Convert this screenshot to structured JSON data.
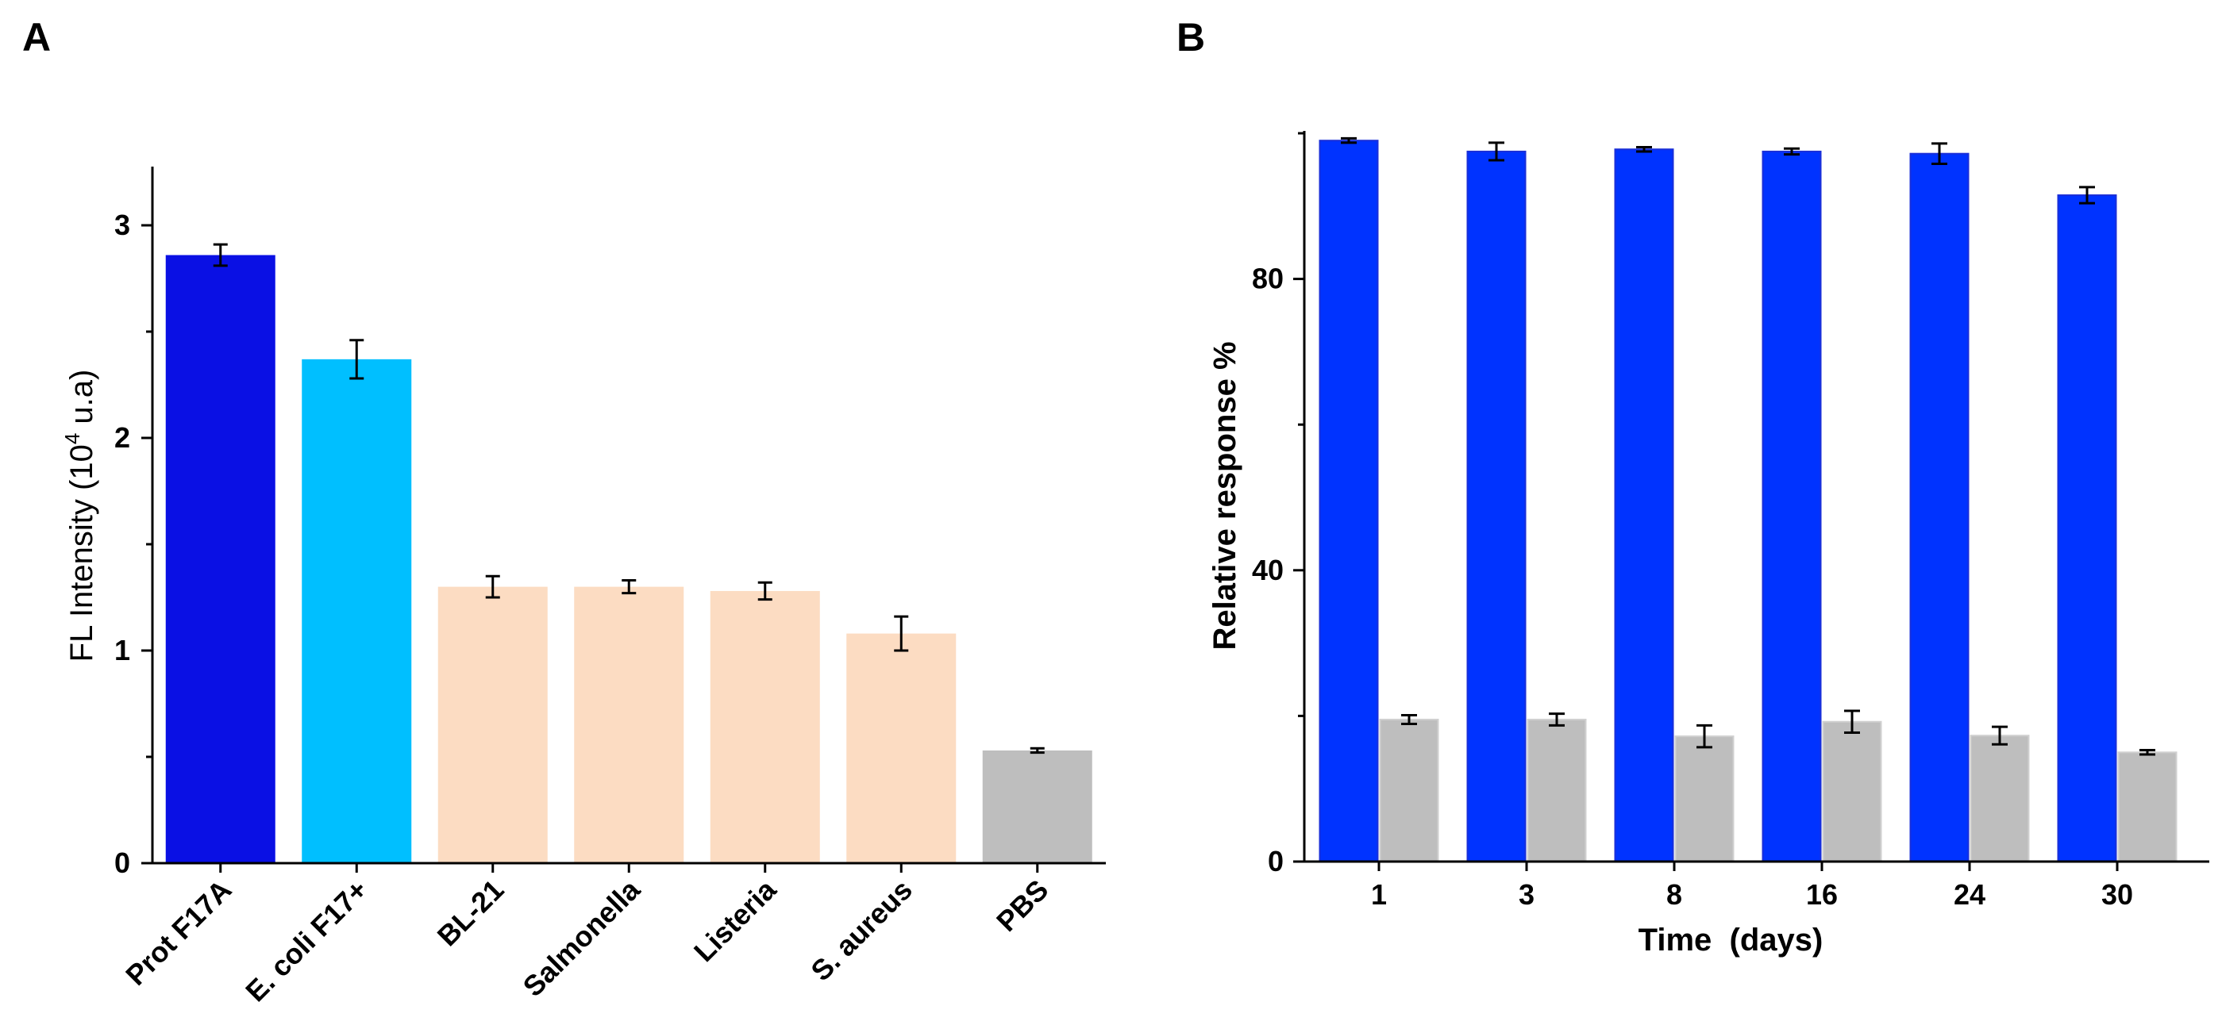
{
  "chart_data": [
    {
      "type": "bar",
      "panel_label": "A",
      "title": "",
      "xlabel": "",
      "ylabel": "FL Intensity (10",
      "ylabel_sup": "4",
      "ylabel_suffix": " u.a)",
      "ylim": [
        0,
        3.3
      ],
      "yticks": [
        "0",
        "1",
        "2",
        "3"
      ],
      "categories": [
        "Prot F17A",
        "E. coli F17+",
        "BL-21",
        "Salmonella",
        "Listeria",
        "S. aureus",
        "PBS"
      ],
      "values": [
        2.86,
        2.37,
        1.3,
        1.3,
        1.28,
        1.08,
        0.53
      ],
      "errors": [
        0.05,
        0.09,
        0.05,
        0.03,
        0.04,
        0.08,
        0.01
      ],
      "colors": [
        "#0a10e4",
        "#00bfff",
        "#fcdcc2",
        "#fcdcc2",
        "#fcdcc2",
        "#fcdcc2",
        "#bebebe"
      ]
    },
    {
      "type": "bar",
      "panel_label": "B",
      "title": "",
      "xlabel": "Time  (days)",
      "ylabel": "Relative response %",
      "ylim": [
        0,
        100
      ],
      "yticks": [
        "0",
        "40",
        "80"
      ],
      "categories": [
        "1",
        "3",
        "8",
        "16",
        "24",
        "30"
      ],
      "series": [
        {
          "name": "blue",
          "color": "#0033ff",
          "values": [
            99,
            97.5,
            97.8,
            97.5,
            97.2,
            91.5
          ],
          "errors": [
            0.3,
            1.2,
            0.3,
            0.4,
            1.4,
            1.1
          ]
        },
        {
          "name": "grey",
          "color": "#bebebe",
          "values": [
            19.5,
            19.5,
            17.2,
            19.2,
            17.3,
            15.0
          ],
          "errors": [
            0.6,
            0.8,
            1.5,
            1.5,
            1.2,
            0.3
          ]
        }
      ]
    }
  ]
}
